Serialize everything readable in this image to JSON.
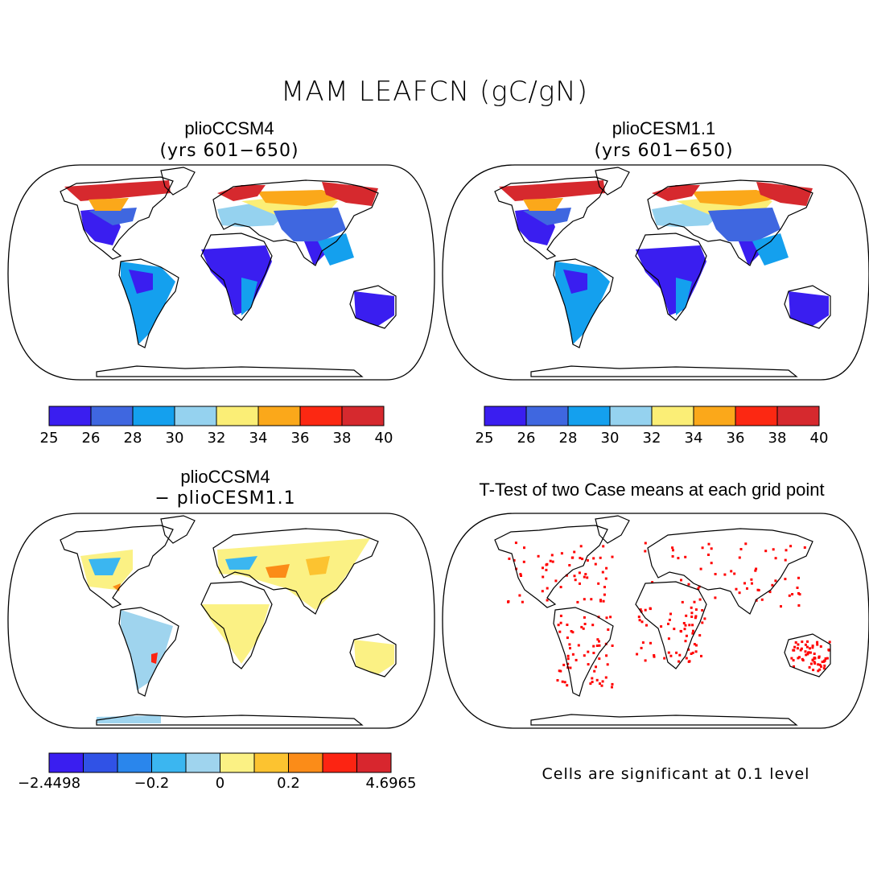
{
  "title": "MAM LEAFCN (gC/gN)",
  "panels": [
    {
      "title": "plioCCSM4",
      "subtitle": "(yrs 601−650)"
    },
    {
      "title": "plioCESM1.1",
      "subtitle": "(yrs 601−650)"
    },
    {
      "title": "plioCCSM4",
      "subtitle": "− plioCESM1.1"
    },
    {
      "title": "T-Test of two Case means at each grid point",
      "subtitle": ""
    }
  ],
  "colorbar_top": {
    "labels": [
      "25",
      "26",
      "28",
      "30",
      "32",
      "34",
      "36",
      "38",
      "40"
    ],
    "colors": [
      "#3a1ef0",
      "#3f67e0",
      "#14a0ee",
      "#95d2ef",
      "#fbee76",
      "#fba81a",
      "#fc2812",
      "#d6292e"
    ]
  },
  "colorbar_diff": {
    "labels": [
      "−2.4498",
      "−0.2",
      "0",
      "0.2",
      "4.6965"
    ],
    "colors": [
      "#3a1ef0",
      "#3052e6",
      "#2a86ec",
      "#3bb6f0",
      "#9fd4ee",
      "#fbf184",
      "#fcc330",
      "#fb8c18",
      "#fc2412",
      "#d8262e"
    ]
  },
  "colors": {
    "significant": "#ff0000",
    "outline": "#000000"
  },
  "footnote": "Cells are significant at 0.1 level"
}
